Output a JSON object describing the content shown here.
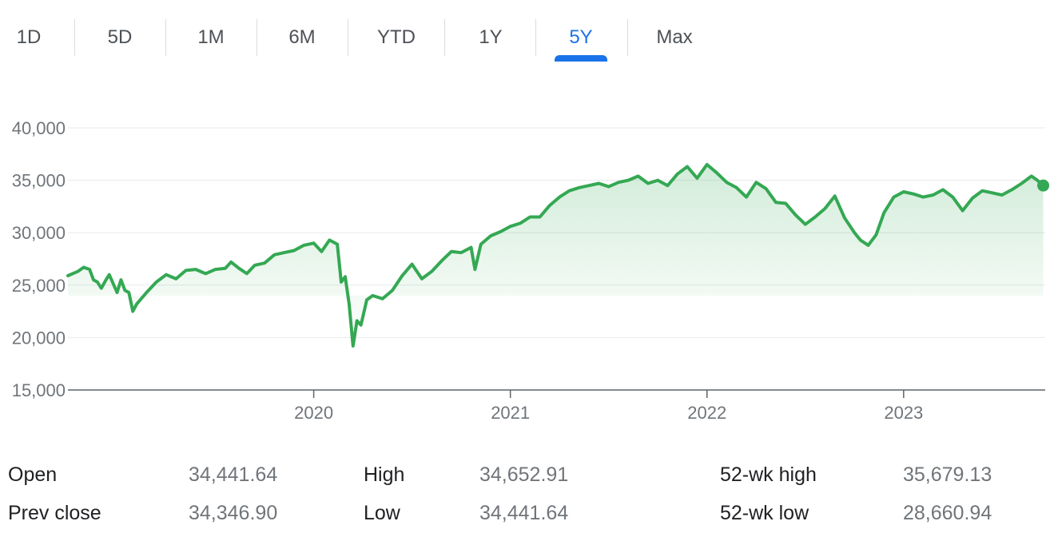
{
  "tabs": [
    "1D",
    "5D",
    "1M",
    "6M",
    "YTD",
    "1Y",
    "5Y",
    "Max"
  ],
  "active_tab": "5Y",
  "colors": {
    "line": "#34a853",
    "accent": "#1a73e8",
    "grid": "#e8eaed",
    "axis": "#5f6368"
  },
  "chart_data": {
    "type": "area",
    "title": "",
    "xlabel": "",
    "ylabel": "",
    "ylim": [
      15000,
      40000
    ],
    "xlim": [
      2018.75,
      2023.72
    ],
    "y_ticks": [
      "15,000",
      "20,000",
      "25,000",
      "30,000",
      "35,000",
      "40,000"
    ],
    "y_tick_values": [
      15000,
      20000,
      25000,
      30000,
      35000,
      40000
    ],
    "x_ticks": [
      "2020",
      "2021",
      "2022",
      "2023"
    ],
    "x_tick_values": [
      2020,
      2021,
      2022,
      2023
    ],
    "grid": true,
    "series": [
      {
        "x": [
          2018.75,
          2018.8,
          2018.83,
          2018.86,
          2018.88,
          2018.9,
          2018.92,
          2018.94,
          2018.96,
          2019.0,
          2019.02,
          2019.04,
          2019.06,
          2019.08,
          2019.1,
          2019.15,
          2019.2,
          2019.25,
          2019.3,
          2019.35,
          2019.4,
          2019.45,
          2019.5,
          2019.55,
          2019.58,
          2019.62,
          2019.66,
          2019.7,
          2019.75,
          2019.8,
          2019.85,
          2019.9,
          2019.95,
          2020.0,
          2020.04,
          2020.08,
          2020.12,
          2020.14,
          2020.16,
          2020.18,
          2020.2,
          2020.22,
          2020.24,
          2020.27,
          2020.3,
          2020.35,
          2020.4,
          2020.45,
          2020.5,
          2020.55,
          2020.6,
          2020.65,
          2020.7,
          2020.75,
          2020.8,
          2020.82,
          2020.85,
          2020.9,
          2020.95,
          2021.0,
          2021.05,
          2021.1,
          2021.15,
          2021.2,
          2021.25,
          2021.3,
          2021.35,
          2021.4,
          2021.45,
          2021.5,
          2021.55,
          2021.6,
          2021.65,
          2021.7,
          2021.75,
          2021.8,
          2021.85,
          2021.9,
          2021.95,
          2022.0,
          2022.05,
          2022.1,
          2022.15,
          2022.2,
          2022.25,
          2022.3,
          2022.35,
          2022.4,
          2022.45,
          2022.5,
          2022.55,
          2022.6,
          2022.65,
          2022.7,
          2022.75,
          2022.78,
          2022.82,
          2022.86,
          2022.9,
          2022.95,
          2023.0,
          2023.05,
          2023.1,
          2023.15,
          2023.2,
          2023.25,
          2023.3,
          2023.35,
          2023.4,
          2023.45,
          2023.5,
          2023.55,
          2023.6,
          2023.65,
          2023.68,
          2023.71
        ],
        "y": [
          25900,
          26300,
          26700,
          26500,
          25500,
          25300,
          24700,
          25400,
          26000,
          24300,
          25500,
          24500,
          24300,
          22500,
          23200,
          24300,
          25300,
          26000,
          25600,
          26400,
          26500,
          26100,
          26500,
          26600,
          27200,
          26600,
          26100,
          26900,
          27100,
          27900,
          28100,
          28300,
          28800,
          29000,
          28200,
          29300,
          28900,
          25300,
          25800,
          23200,
          19200,
          21600,
          21200,
          23600,
          24000,
          23700,
          24500,
          25900,
          27000,
          25600,
          26300,
          27300,
          28200,
          28100,
          28600,
          26500,
          28900,
          29700,
          30100,
          30600,
          30900,
          31500,
          31500,
          32600,
          33400,
          34000,
          34300,
          34500,
          34700,
          34400,
          34800,
          35000,
          35400,
          34700,
          35000,
          34500,
          35600,
          36300,
          35200,
          36500,
          35700,
          34800,
          34300,
          33400,
          34800,
          34200,
          32900,
          32800,
          31700,
          30800,
          31500,
          32300,
          33500,
          31400,
          30000,
          29300,
          28800,
          29800,
          31900,
          33400,
          33900,
          33700,
          33400,
          33600,
          34100,
          33400,
          32100,
          33300,
          34000,
          33800,
          33600,
          34100,
          34700,
          35400,
          35000,
          34500
        ]
      }
    ]
  },
  "stats": {
    "open_label": "Open",
    "open_value": "34,441.64",
    "prev_close_label": "Prev close",
    "prev_close_value": "34,346.90",
    "high_label": "High",
    "high_value": "34,652.91",
    "low_label": "Low",
    "low_value": "34,441.64",
    "wk52_high_label": "52-wk high",
    "wk52_high_value": "35,679.13",
    "wk52_low_label": "52-wk low",
    "wk52_low_value": "28,660.94"
  }
}
